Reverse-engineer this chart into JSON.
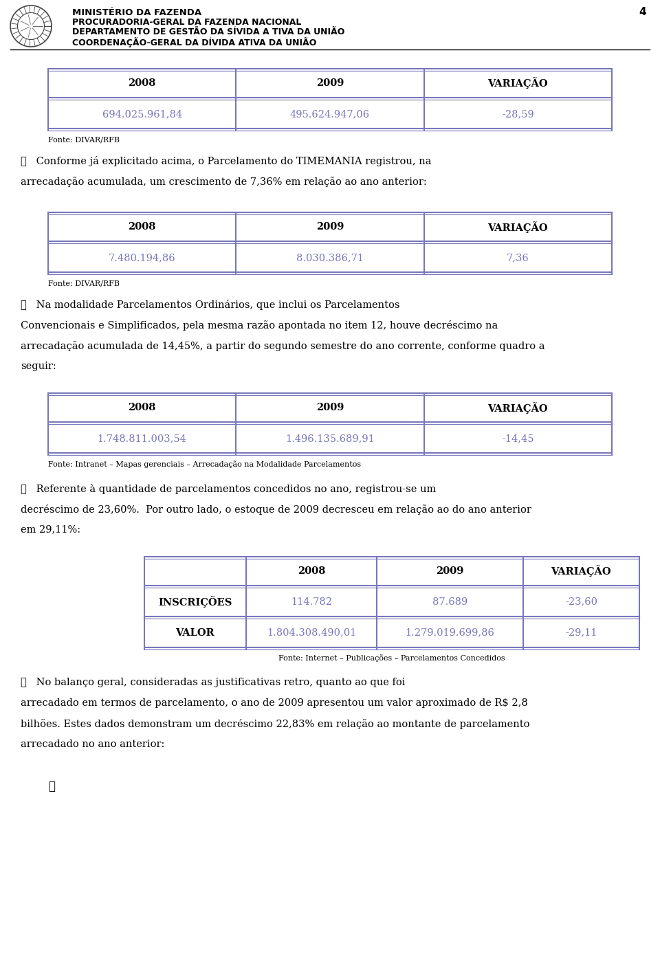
{
  "page_num": "4",
  "header_lines": [
    "MINISTÉRIO DA FAZENDA",
    "PROCURADORIA-GERAL DA FAZENDA NACIONAL",
    "DEPARTAMENTO DE GESTÃO DA SÍVIDA A TIVA DA UNIÃO",
    "COORDENAÇÃO-GERAL DA DÍVIDA ATIVA DA UNIÃO"
  ],
  "table1": {
    "headers": [
      "2008",
      "2009",
      "VARIAÇÃO"
    ],
    "rows": [
      [
        "694.025.961,84",
        "495.624.947,06",
        "-28,59"
      ]
    ],
    "fonte": "Fonte: DIVAR/RFB"
  },
  "para1_lines": [
    "❖   Conforme já explicitado acima, o Parcelamento do TIMEMANIA registrou, na",
    "arrecadação acumulada, um crescimento de 7,36% em relação ao ano anterior:"
  ],
  "table2": {
    "headers": [
      "2008",
      "2009",
      "VARIAÇÃO"
    ],
    "rows": [
      [
        "7.480.194,86",
        "8.030.386,71",
        "7,36"
      ]
    ],
    "fonte": "Fonte: DIVAR/RFB"
  },
  "para2_lines": [
    "❖   Na modalidade Parcelamentos Ordinários, que inclui os Parcelamentos",
    "Convencionais e Simplificados, pela mesma razão apontada no item 12, houve decréscimo na",
    "arrecadação acumulada de 14,45%, a partir do segundo semestre do ano corrente, conforme quadro a",
    "seguir:"
  ],
  "table3": {
    "headers": [
      "2008",
      "2009",
      "VARIAÇÃO"
    ],
    "rows": [
      [
        "1.748.811.003,54",
        "1.496.135.689,91",
        "-14,45"
      ]
    ],
    "fonte": "Fonte: Intranet – Mapas gerenciais – Arrecadação na Modalidade Parcelamentos"
  },
  "para3_lines": [
    "❖   Referente à quantidade de parcelamentos concedidos no ano, registrou-se um",
    "decréscimo de 23,60%.  Por outro lado, o estoque de 2009 decresceu em relação ao do ano anterior",
    "em 29,11%:"
  ],
  "table4": {
    "headers": [
      "",
      "2008",
      "2009",
      "VARIAÇÃO"
    ],
    "rows": [
      [
        "INSCRIÇÕES",
        "114.782",
        "87.689",
        "-23,60"
      ],
      [
        "VALOR",
        "1.804.308.490,01",
        "1.279.019.699,86",
        "-29,11"
      ]
    ],
    "fonte": "Fonte: Internet – Publicações – Parcelamentos Concedidos"
  },
  "para4_lines": [
    "❖   No balanço geral, consideradas as justificativas retro, quanto ao que foi",
    "arrecadado em termos de parcelamento, o ano de 2009 apresentou um valor aproximado de R$ 2,8",
    "bilhões. Estes dados demonstram um decréscimo 22,83% em relação ao montante de parcelamento",
    "arrecadado no ano anterior:"
  ],
  "bullet_end": "❖",
  "bg_color": "#ffffff",
  "text_color": "#000000",
  "border_color": "#7777bb",
  "data_color": "#7777bb",
  "header_bold_color": "#000000",
  "fonte_color": "#000000",
  "page_number_color": "#000000"
}
